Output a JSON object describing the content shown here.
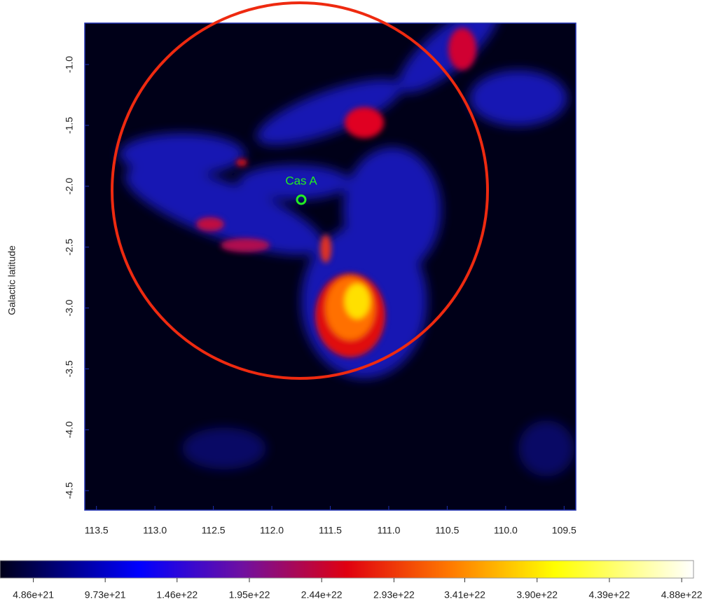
{
  "chart_data": {
    "type": "image",
    "y_label": "Galactic latitude",
    "annotation": "Cas A",
    "xlim": [
      113.6,
      109.4
    ],
    "xticks": [
      113.5,
      {
        "value": 113.0,
        "label": "113.0"
      },
      112.5,
      {
        "value": 112.0,
        "label": "112.0"
      },
      111.5,
      {
        "value": 111.0,
        "label": "111.0"
      },
      110.5,
      {
        "value": 110.0,
        "label": "110.0"
      },
      109.5
    ],
    "ylim": [
      -4.66,
      -0.66
    ],
    "yticks": [
      {
        "value": -1.0,
        "label": "-1.0"
      },
      -1.5,
      {
        "value": -2.0,
        "label": "-2.0"
      },
      -2.5,
      {
        "value": -3.0,
        "label": "-3.0"
      },
      -3.5,
      {
        "value": -4.0,
        "label": "-4.0"
      },
      -4.5
    ],
    "colorbar_lim": [
      2.6e+21,
      4.96e+22
    ],
    "colorbar_ticks": [
      {
        "value": 4.86e+21,
        "label": "4.86e+21"
      },
      {
        "value": 9.73e+21,
        "label": "9.73e+21"
      },
      {
        "value": 1.46e+22,
        "label": "1.46e+22"
      },
      {
        "value": 1.95e+22,
        "label": "1.95e+22"
      },
      {
        "value": 2.44e+22,
        "label": "2.44e+22"
      },
      {
        "value": 2.93e+22,
        "label": "2.93e+22"
      },
      {
        "value": 3.41e+22,
        "label": "3.41e+22"
      },
      {
        "value": 3.9e+22,
        "label": "3.90e+22"
      },
      {
        "value": 4.39e+22,
        "label": "4.39e+22"
      },
      {
        "value": 4.88e+22,
        "label": "4.88e+22"
      }
    ]
  }
}
